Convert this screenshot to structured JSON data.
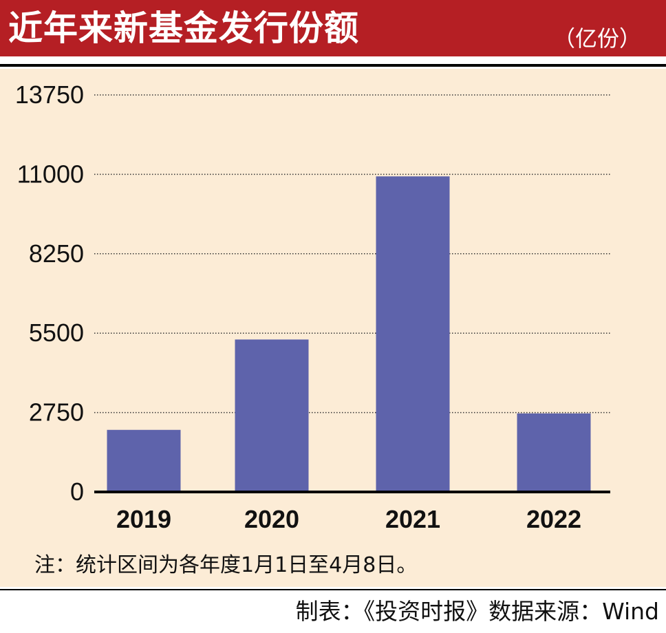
{
  "header": {
    "title": "近年来新基金发行份额",
    "unit": "（亿份）"
  },
  "note": "注：统计区间为各年度1月1日至4月8日。",
  "credit": "制表：《投资时报》数据来源：Wind",
  "colors": {
    "header_bg": "#b51f24",
    "panel_bg": "#fcecd6",
    "bar": "#5e63ab",
    "grid": "#333333"
  },
  "chart_data": {
    "type": "bar",
    "categories": [
      "2019",
      "2020",
      "2021",
      "2022"
    ],
    "values": [
      2150,
      5280,
      10930,
      2720
    ],
    "title": "近年来新基金发行份额",
    "unit": "（亿份）",
    "xlabel": "",
    "ylabel": "",
    "ylim": [
      0,
      13750
    ],
    "yticks": [
      0,
      2750,
      5500,
      8250,
      11000,
      13750
    ],
    "grid": "dotted horizontal",
    "legend": "none"
  }
}
